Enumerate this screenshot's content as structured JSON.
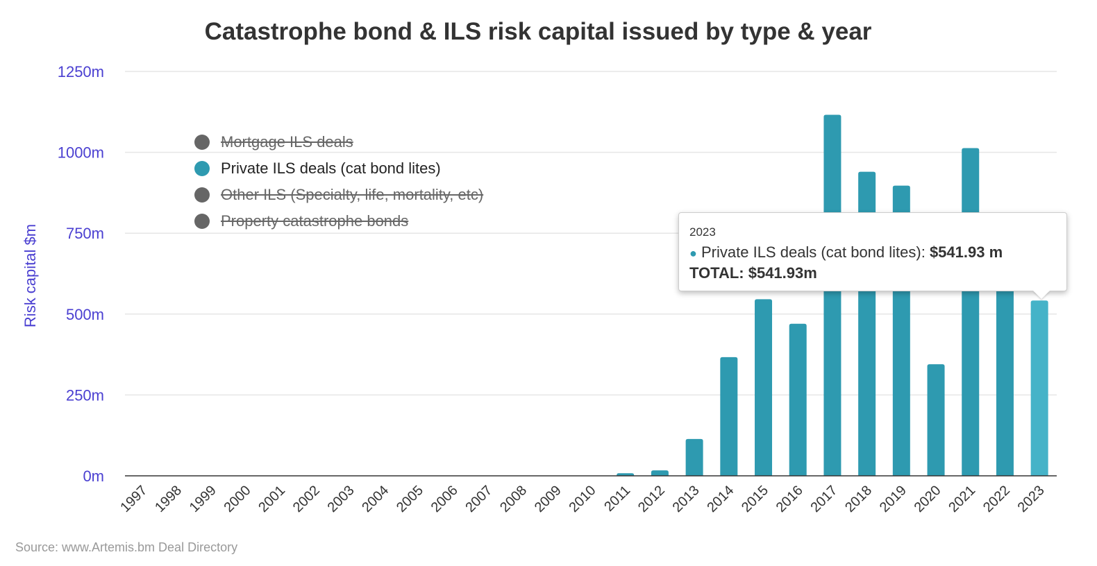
{
  "chart_data": {
    "type": "bar",
    "title": "Catastrophe bond & ILS risk capital issued by type & year",
    "ylabel": "Risk capital $m",
    "xlabel": "",
    "ylim": [
      0,
      1250
    ],
    "yticks": [
      0,
      250,
      500,
      750,
      1000,
      1250
    ],
    "ytick_labels": [
      "0m",
      "250m",
      "500m",
      "750m",
      "1000m",
      "1250m"
    ],
    "grid": true,
    "categories": [
      "1997",
      "1998",
      "1999",
      "2000",
      "2001",
      "2002",
      "2003",
      "2004",
      "2005",
      "2006",
      "2007",
      "2008",
      "2009",
      "2010",
      "2011",
      "2012",
      "2013",
      "2014",
      "2015",
      "2016",
      "2017",
      "2018",
      "2019",
      "2020",
      "2021",
      "2022",
      "2023"
    ],
    "series": [
      {
        "name": "Private ILS deals (cat bond lites)",
        "color": "#2e9ab0",
        "values": [
          0,
          0,
          0,
          0,
          0,
          0,
          0,
          0,
          0,
          0,
          0,
          0,
          0,
          0,
          8,
          17,
          114,
          367,
          546,
          470,
          1116,
          940,
          897,
          345,
          1013,
          700,
          541.93
        ]
      }
    ],
    "highlight": {
      "category": "2023",
      "color": "#45b3c8"
    },
    "legend": {
      "placement": "top-left",
      "items": [
        {
          "label": "Mortgage ILS deals",
          "color": "#666666",
          "hidden": true
        },
        {
          "label": "Private ILS deals (cat bond lites)",
          "color": "#2e9ab0",
          "hidden": false
        },
        {
          "label": "Other ILS (Specialty, life, mortality, etc)",
          "color": "#666666",
          "hidden": true
        },
        {
          "label": "Property catastrophe bonds",
          "color": "#666666",
          "hidden": true
        }
      ]
    },
    "tooltip": {
      "year": "2023",
      "series_label": "Private ILS deals (cat bond lites): ",
      "value": "$541.93 m",
      "total": "TOTAL: $541.93m"
    },
    "source": "Source: www.Artemis.bm Deal Directory"
  }
}
